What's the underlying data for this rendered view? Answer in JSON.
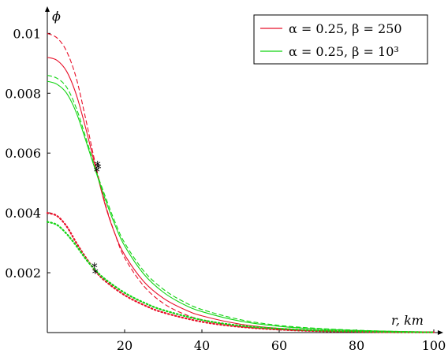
{
  "chart_data": {
    "type": "line",
    "title": "",
    "xlabel": "r, km",
    "ylabel": "ϕ",
    "xlim": [
      0,
      100
    ],
    "ylim": [
      0,
      0.0108
    ],
    "x_ticks": [
      20,
      40,
      60,
      80,
      100
    ],
    "x_tick_labels": [
      "20",
      "40",
      "60",
      "80",
      "100"
    ],
    "y_ticks": [
      0.002,
      0.004,
      0.006,
      0.008,
      0.01
    ],
    "y_tick_labels": [
      "0.002",
      "0.004",
      "0.006",
      "0.008",
      "0.01"
    ],
    "grid": false,
    "legend_position": "top-right",
    "legend": [
      {
        "label": "α = 0.25, β = 250",
        "color": "#e8102a"
      },
      {
        "label": "α = 0.25, β = 10³",
        "color": "#12d412"
      }
    ],
    "series": [
      {
        "color": "#e8102a",
        "style": "solid",
        "x": [
          0,
          2.5,
          5,
          7.5,
          10,
          12.5,
          15,
          17.5,
          20,
          25,
          30,
          35,
          40,
          50,
          60,
          70,
          80,
          90,
          100
        ],
        "y": [
          0.0092,
          0.0091,
          0.00873,
          0.00795,
          0.0068,
          0.0055,
          0.00425,
          0.0033,
          0.0026,
          0.0017,
          0.00115,
          0.0008,
          0.00056,
          0.00028,
          0.00014,
          7e-05,
          4e-05,
          2e-05,
          1e-05
        ]
      },
      {
        "color": "#e8102a",
        "style": "dashed",
        "x": [
          0,
          2.5,
          5,
          7.5,
          10,
          12.5,
          15,
          17.5,
          20,
          25,
          30,
          35,
          40,
          50,
          60,
          70,
          80,
          90,
          100
        ],
        "y": [
          0.01,
          0.00985,
          0.0094,
          0.0085,
          0.0071,
          0.0056,
          0.0043,
          0.0033,
          0.0025,
          0.00155,
          0.00098,
          0.00064,
          0.00043,
          0.0002,
          0.0001,
          5e-05,
          3e-05,
          1e-05,
          1e-05
        ]
      },
      {
        "color": "#12d412",
        "style": "solid",
        "x": [
          0,
          2.5,
          5,
          7.5,
          10,
          12.5,
          15,
          17.5,
          20,
          25,
          30,
          35,
          40,
          50,
          60,
          70,
          80,
          90,
          100
        ],
        "y": [
          0.0084,
          0.0083,
          0.008,
          0.00735,
          0.0064,
          0.0054,
          0.00445,
          0.0036,
          0.0029,
          0.00195,
          0.00135,
          0.00096,
          0.0007,
          0.00038,
          0.00021,
          0.00012,
          7e-05,
          4e-05,
          2e-05
        ]
      },
      {
        "color": "#12d412",
        "style": "dashed",
        "x": [
          0,
          2.5,
          5,
          7.5,
          10,
          12.5,
          15,
          17.5,
          20,
          25,
          30,
          35,
          40,
          50,
          60,
          70,
          80,
          90,
          100
        ],
        "y": [
          0.0086,
          0.0085,
          0.0082,
          0.0075,
          0.0065,
          0.00545,
          0.00455,
          0.0037,
          0.003,
          0.00205,
          0.00145,
          0.00105,
          0.00077,
          0.00043,
          0.00024,
          0.00014,
          8e-05,
          4e-05,
          2e-05
        ]
      },
      {
        "color": "#e8102a",
        "style": "dotted",
        "x": [
          0,
          2.5,
          5,
          7.5,
          10,
          12.5,
          15,
          20,
          25,
          30,
          40,
          50,
          60,
          70,
          80,
          90,
          100
        ],
        "y": [
          0.004,
          0.0039,
          0.00355,
          0.003,
          0.0025,
          0.00205,
          0.00172,
          0.00125,
          0.00092,
          0.00067,
          0.00036,
          0.00019,
          0.0001,
          5e-05,
          3e-05,
          1e-05,
          1e-05
        ]
      },
      {
        "color": "#12d412",
        "style": "dotted",
        "x": [
          0,
          2.5,
          5,
          7.5,
          10,
          12.5,
          15,
          20,
          25,
          30,
          40,
          50,
          60,
          70,
          80,
          90,
          100
        ],
        "y": [
          0.0037,
          0.0036,
          0.0033,
          0.0029,
          0.00245,
          0.00208,
          0.00178,
          0.00133,
          0.001,
          0.00075,
          0.00042,
          0.00023,
          0.00013,
          7e-05,
          4e-05,
          2e-05,
          1e-05
        ]
      }
    ],
    "markers": [
      {
        "symbol": "*",
        "x": 12.8,
        "y": 0.0054
      },
      {
        "symbol": "*",
        "x": 13.2,
        "y": 0.0055
      },
      {
        "symbol": "*",
        "x": 13.0,
        "y": 0.0056
      },
      {
        "symbol": "*",
        "x": 12.2,
        "y": 0.0022
      },
      {
        "symbol": "*",
        "x": 12.4,
        "y": 0.002
      }
    ]
  }
}
